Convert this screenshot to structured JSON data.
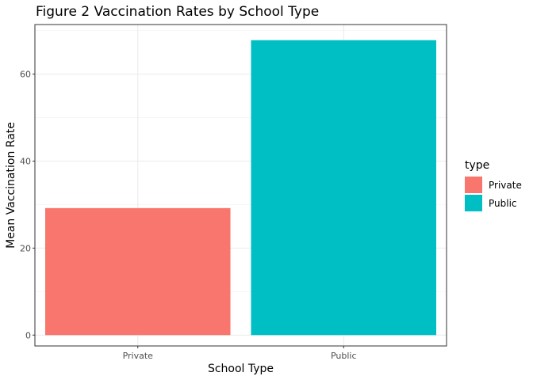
{
  "chart_data": {
    "type": "bar",
    "title": "Figure 2 Vaccination Rates by School Type",
    "xlabel": "School Type",
    "ylabel": "Mean Vaccination Rate",
    "categories": [
      "Private",
      "Public"
    ],
    "values": [
      29.2,
      67.8
    ],
    "colors": [
      "#F8766D",
      "#00BFC4"
    ],
    "ylim": [
      -2.5,
      71.4
    ],
    "yticks": [
      0,
      20,
      40,
      60
    ],
    "grid": true,
    "legend": {
      "title": "type",
      "position": "right",
      "items": [
        "Private",
        "Public"
      ]
    }
  }
}
